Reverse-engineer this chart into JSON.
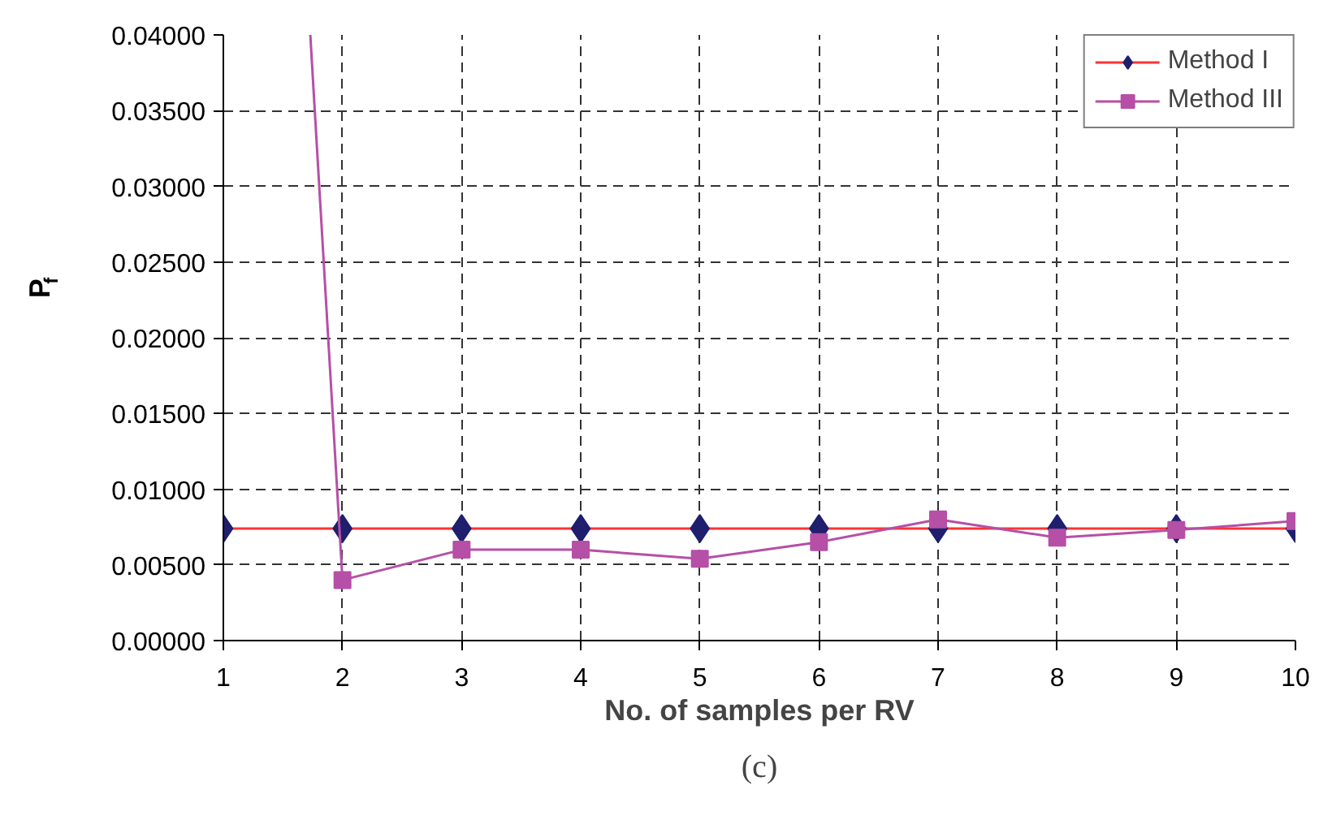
{
  "chart_data": {
    "type": "line",
    "xlabel": "No. of samples per RV",
    "ylabel": "P$_{f}$",
    "x": [
      1,
      2,
      3,
      4,
      5,
      6,
      7,
      8,
      9,
      10
    ],
    "series": [
      {
        "name": "Method I",
        "color": "#ff3333",
        "colors": [
          "#1f1f6e",
          "#1f1f6e",
          "#1f1f6e",
          "#1f1f6e",
          "#1f1f6e",
          "#1f1f6e",
          "#1f1f6e",
          "#1f1f6e",
          "#1f1f6e",
          "#1f1f6e"
        ],
        "marker": "diamond",
        "values": [
          0.0074,
          0.0074,
          0.0074,
          0.0074,
          0.0074,
          0.0074,
          0.0074,
          0.0074,
          0.0074,
          0.0074
        ]
      },
      {
        "name": "Method III",
        "color": "#b64fa6",
        "marker": "square",
        "values": [
          null,
          0.004,
          0.006,
          0.006,
          0.0054,
          0.0065,
          0.008,
          0.0068,
          0.0073,
          0.0079
        ]
      },
      {
        "type": "line",
        "color": "#b64fa6",
        "marker": "none",
        "x": [
          1.73,
          2
        ],
        "values": [
          0.04,
          0.004
        ]
      }
    ],
    "xlim": [
      1,
      10
    ],
    "xticks": [
      1,
      2,
      3,
      4,
      5,
      6,
      7,
      8,
      9,
      10
    ],
    "ylim": [
      0,
      0.04
    ],
    "yticks": [
      {
        "value": 0,
        "label": "0.00000"
      },
      {
        "value": 0.005,
        "label": "0.00500"
      },
      {
        "value": 0.01,
        "label": "0.01000"
      },
      {
        "value": 0.015,
        "label": "0.01500"
      },
      {
        "value": 0.02,
        "label": "0.02000"
      },
      {
        "value": 0.025,
        "label": "0.02500"
      },
      {
        "value": 0.03,
        "label": "0.03000"
      },
      {
        "value": 0.035,
        "label": "0.03500"
      },
      {
        "value": 0.04,
        "label": "0.04000"
      }
    ],
    "grid": true,
    "legend": "top right",
    "line_style": "solid",
    "annotations": [
      "(c)"
    ]
  }
}
